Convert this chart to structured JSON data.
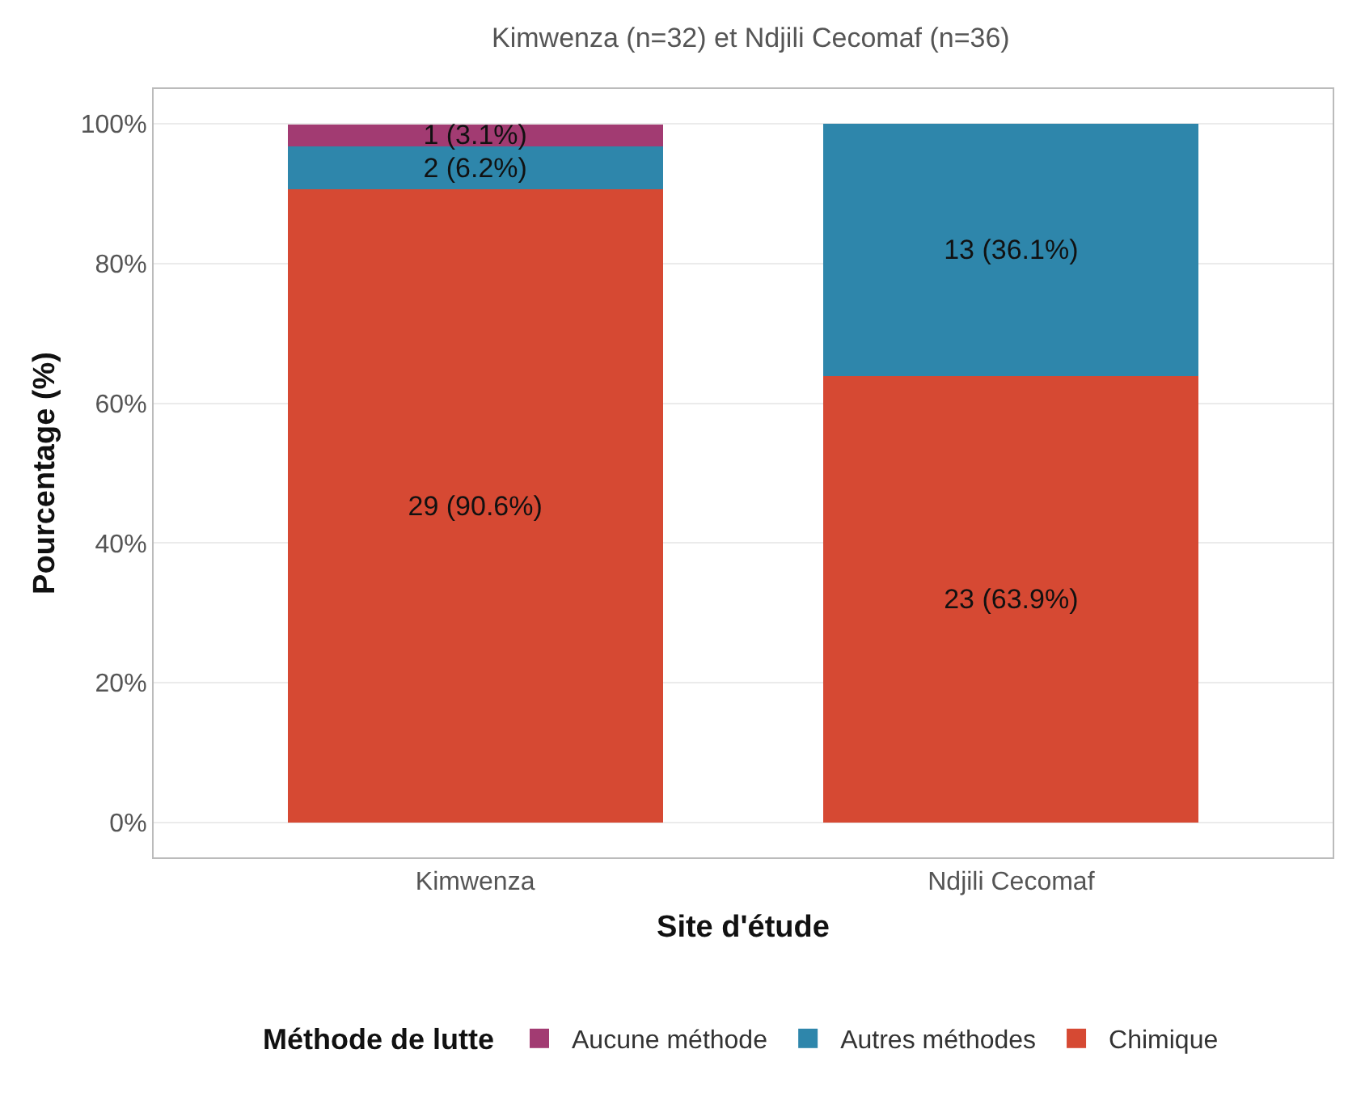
{
  "chart_data": {
    "type": "bar",
    "stacked": true,
    "title": "Kimwenza (n=32) et Ndjili Cecomaf (n=36)",
    "xlabel": "Site d'étude",
    "ylabel": "Pourcentage (%)",
    "legend_title": "Méthode de lutte",
    "categories": [
      "Kimwenza",
      "Ndjili Cecomaf"
    ],
    "series": [
      {
        "name": "Chimique",
        "color": "#d64933",
        "values": [
          90.6,
          63.9
        ],
        "value_labels": [
          "29 (90.6%)",
          "23 (63.9%)"
        ]
      },
      {
        "name": "Autres méthodes",
        "color": "#2e86ab",
        "values": [
          6.2,
          36.1
        ],
        "value_labels": [
          "2 (6.2%)",
          "13 (36.1%)"
        ]
      },
      {
        "name": "Aucune méthode",
        "color": "#a23b72",
        "values": [
          3.1,
          0
        ],
        "value_labels": [
          "1 (3.1%)",
          null
        ]
      }
    ],
    "ylim": [
      -5,
      105
    ],
    "yticks": [
      {
        "value": 0,
        "label": "0%"
      },
      {
        "value": 20,
        "label": "20%"
      },
      {
        "value": 40,
        "label": "40%"
      },
      {
        "value": 60,
        "label": "60%"
      },
      {
        "value": 80,
        "label": "80%"
      },
      {
        "value": 100,
        "label": "100%"
      }
    ],
    "grid": "y",
    "legend": "bottom"
  }
}
